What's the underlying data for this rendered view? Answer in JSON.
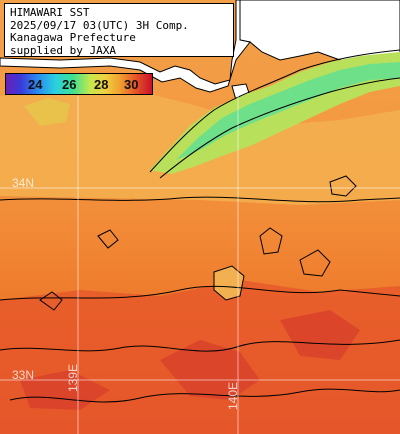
{
  "info": {
    "line1": "HIMAWARI SST",
    "line2": "2025/09/17 03(UTC) 3H Comp.",
    "line3": "Kanagawa Prefecture",
    "line4": "supplied by JAXA"
  },
  "legend": {
    "ticks": [
      "24",
      "26",
      "28",
      "30"
    ],
    "colors": [
      "#6a1fb8",
      "#2a8cf0",
      "#40e090",
      "#f0d040",
      "#e85a28",
      "#c8102a"
    ]
  },
  "grid": {
    "lat_label_north": "34N",
    "lat_label_south": "33N",
    "lon_label_west": "139E",
    "lon_label_east": "140E"
  }
}
